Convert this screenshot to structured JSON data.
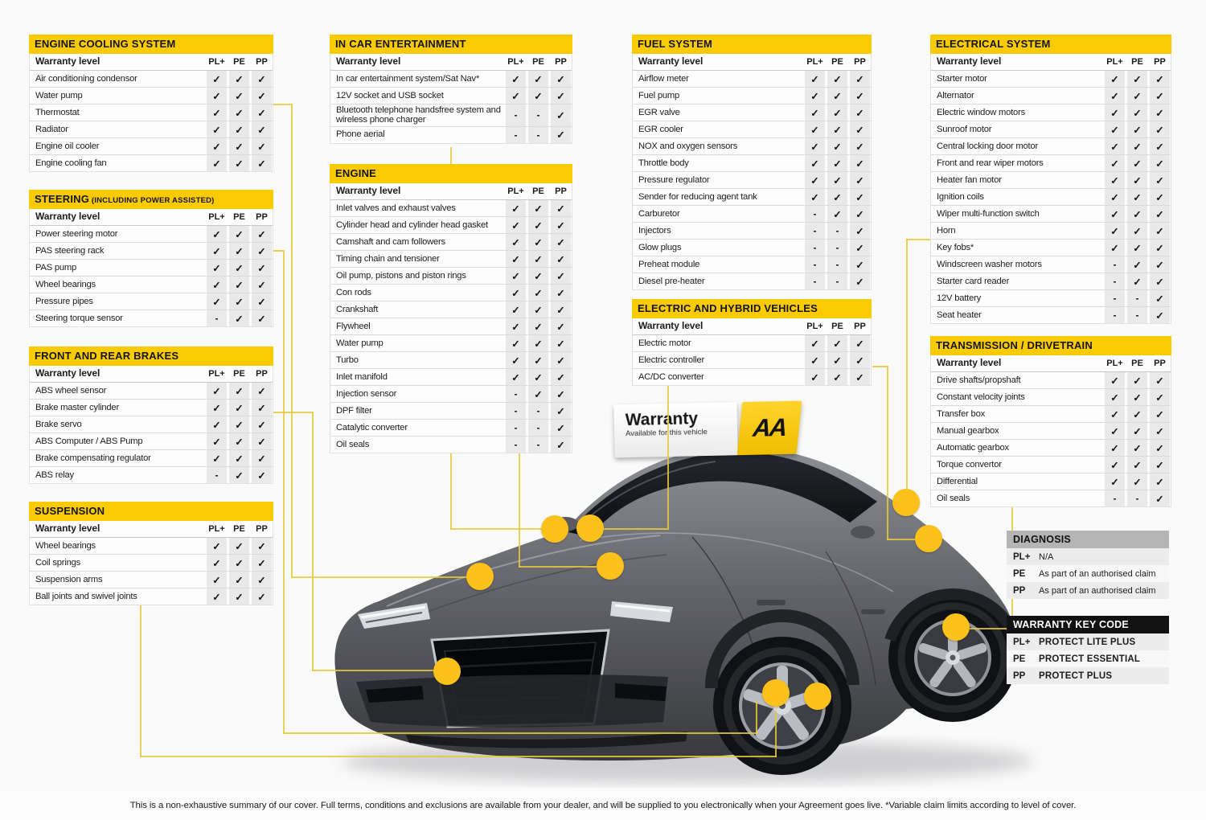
{
  "common": {
    "warranty_level": "Warranty level",
    "columns": [
      "PL+",
      "PE",
      "PP"
    ]
  },
  "colors": {
    "accent_yellow": "#F9CB00",
    "dot_yellow": "#FCC21B",
    "line_yellow": "#E6C93C",
    "diagnosis_header": "#B5B5B5",
    "keycode_header": "#121212"
  },
  "tables": {
    "engine_cooling": {
      "title": "ENGINE COOLING SYSTEM",
      "rows": [
        {
          "label": "Air conditioning condensor",
          "marks": [
            "✓",
            "✓",
            "✓"
          ]
        },
        {
          "label": "Water pump",
          "marks": [
            "✓",
            "✓",
            "✓"
          ]
        },
        {
          "label": "Thermostat",
          "marks": [
            "✓",
            "✓",
            "✓"
          ]
        },
        {
          "label": "Radiator",
          "marks": [
            "✓",
            "✓",
            "✓"
          ]
        },
        {
          "label": "Engine oil cooler",
          "marks": [
            "✓",
            "✓",
            "✓"
          ]
        },
        {
          "label": "Engine cooling fan",
          "marks": [
            "✓",
            "✓",
            "✓"
          ]
        }
      ]
    },
    "steering": {
      "title": "STEERING",
      "subtitle": "(INCLUDING POWER ASSISTED)",
      "rows": [
        {
          "label": "Power steering motor",
          "marks": [
            "✓",
            "✓",
            "✓"
          ]
        },
        {
          "label": "PAS steering rack",
          "marks": [
            "✓",
            "✓",
            "✓"
          ]
        },
        {
          "label": "PAS pump",
          "marks": [
            "✓",
            "✓",
            "✓"
          ]
        },
        {
          "label": "Wheel bearings",
          "marks": [
            "✓",
            "✓",
            "✓"
          ]
        },
        {
          "label": "Pressure pipes",
          "marks": [
            "✓",
            "✓",
            "✓"
          ]
        },
        {
          "label": "Steering torque sensor",
          "marks": [
            "-",
            "✓",
            "✓"
          ]
        }
      ]
    },
    "brakes": {
      "title": "FRONT AND REAR BRAKES",
      "rows": [
        {
          "label": "ABS wheel sensor",
          "marks": [
            "✓",
            "✓",
            "✓"
          ]
        },
        {
          "label": "Brake master cylinder",
          "marks": [
            "✓",
            "✓",
            "✓"
          ]
        },
        {
          "label": "Brake servo",
          "marks": [
            "✓",
            "✓",
            "✓"
          ]
        },
        {
          "label": "ABS Computer / ABS Pump",
          "marks": [
            "✓",
            "✓",
            "✓"
          ]
        },
        {
          "label": "Brake compensating regulator",
          "marks": [
            "✓",
            "✓",
            "✓"
          ]
        },
        {
          "label": "ABS relay",
          "marks": [
            "-",
            "✓",
            "✓"
          ]
        }
      ]
    },
    "suspension": {
      "title": "SUSPENSION",
      "rows": [
        {
          "label": "Wheel bearings",
          "marks": [
            "✓",
            "✓",
            "✓"
          ]
        },
        {
          "label": "Coil springs",
          "marks": [
            "✓",
            "✓",
            "✓"
          ]
        },
        {
          "label": "Suspension arms",
          "marks": [
            "✓",
            "✓",
            "✓"
          ]
        },
        {
          "label": "Ball joints and swivel joints",
          "marks": [
            "✓",
            "✓",
            "✓"
          ]
        }
      ]
    },
    "ice": {
      "title": "IN CAR ENTERTAINMENT",
      "rows": [
        {
          "label": "In car entertainment system/Sat Nav*",
          "marks": [
            "✓",
            "✓",
            "✓"
          ]
        },
        {
          "label": "12V socket and USB socket",
          "marks": [
            "✓",
            "✓",
            "✓"
          ]
        },
        {
          "label": "Bluetooth telephone handsfree system and wireless phone charger",
          "marks": [
            "-",
            "-",
            "✓"
          ]
        },
        {
          "label": "Phone aerial",
          "marks": [
            "-",
            "-",
            "✓"
          ]
        }
      ]
    },
    "engine": {
      "title": "ENGINE",
      "rows": [
        {
          "label": "Inlet valves and exhaust valves",
          "marks": [
            "✓",
            "✓",
            "✓"
          ]
        },
        {
          "label": "Cylinder head and cylinder head gasket",
          "marks": [
            "✓",
            "✓",
            "✓"
          ]
        },
        {
          "label": "Camshaft and cam followers",
          "marks": [
            "✓",
            "✓",
            "✓"
          ]
        },
        {
          "label": "Timing chain and tensioner",
          "marks": [
            "✓",
            "✓",
            "✓"
          ]
        },
        {
          "label": "Oil pump, pistons and piston rings",
          "marks": [
            "✓",
            "✓",
            "✓"
          ]
        },
        {
          "label": "Con rods",
          "marks": [
            "✓",
            "✓",
            "✓"
          ]
        },
        {
          "label": "Crankshaft",
          "marks": [
            "✓",
            "✓",
            "✓"
          ]
        },
        {
          "label": "Flywheel",
          "marks": [
            "✓",
            "✓",
            "✓"
          ]
        },
        {
          "label": "Water pump",
          "marks": [
            "✓",
            "✓",
            "✓"
          ]
        },
        {
          "label": "Turbo",
          "marks": [
            "✓",
            "✓",
            "✓"
          ]
        },
        {
          "label": "Inlet manifold",
          "marks": [
            "✓",
            "✓",
            "✓"
          ]
        },
        {
          "label": "Injection sensor",
          "marks": [
            "-",
            "✓",
            "✓"
          ]
        },
        {
          "label": "DPF filter",
          "marks": [
            "-",
            "-",
            "✓"
          ]
        },
        {
          "label": "Catalytic converter",
          "marks": [
            "-",
            "-",
            "✓"
          ]
        },
        {
          "label": "Oil seals",
          "marks": [
            "-",
            "-",
            "✓"
          ]
        }
      ]
    },
    "fuel": {
      "title": "FUEL SYSTEM",
      "rows": [
        {
          "label": "Airflow meter",
          "marks": [
            "✓",
            "✓",
            "✓"
          ]
        },
        {
          "label": "Fuel pump",
          "marks": [
            "✓",
            "✓",
            "✓"
          ]
        },
        {
          "label": "EGR valve",
          "marks": [
            "✓",
            "✓",
            "✓"
          ]
        },
        {
          "label": "EGR cooler",
          "marks": [
            "✓",
            "✓",
            "✓"
          ]
        },
        {
          "label": "NOX and oxygen sensors",
          "marks": [
            "✓",
            "✓",
            "✓"
          ]
        },
        {
          "label": "Throttle body",
          "marks": [
            "✓",
            "✓",
            "✓"
          ]
        },
        {
          "label": "Pressure regulator",
          "marks": [
            "✓",
            "✓",
            "✓"
          ]
        },
        {
          "label": "Sender for reducing agent tank",
          "marks": [
            "✓",
            "✓",
            "✓"
          ]
        },
        {
          "label": "Carburetor",
          "marks": [
            "-",
            "✓",
            "✓"
          ]
        },
        {
          "label": "Injectors",
          "marks": [
            "-",
            "-",
            "✓"
          ]
        },
        {
          "label": "Glow plugs",
          "marks": [
            "-",
            "-",
            "✓"
          ]
        },
        {
          "label": "Preheat module",
          "marks": [
            "-",
            "-",
            "✓"
          ]
        },
        {
          "label": "Diesel pre-heater",
          "marks": [
            "-",
            "-",
            "✓"
          ]
        }
      ]
    },
    "ehv": {
      "title": "ELECTRIC AND HYBRID VEHICLES",
      "rows": [
        {
          "label": "Electric motor",
          "marks": [
            "✓",
            "✓",
            "✓"
          ]
        },
        {
          "label": "Electric controller",
          "marks": [
            "✓",
            "✓",
            "✓"
          ]
        },
        {
          "label": "AC/DC converter",
          "marks": [
            "✓",
            "✓",
            "✓"
          ]
        }
      ]
    },
    "electrical": {
      "title": "ELECTRICAL SYSTEM",
      "rows": [
        {
          "label": "Starter motor",
          "marks": [
            "✓",
            "✓",
            "✓"
          ]
        },
        {
          "label": "Alternator",
          "marks": [
            "✓",
            "✓",
            "✓"
          ]
        },
        {
          "label": "Electric window motors",
          "marks": [
            "✓",
            "✓",
            "✓"
          ]
        },
        {
          "label": "Sunroof motor",
          "marks": [
            "✓",
            "✓",
            "✓"
          ]
        },
        {
          "label": "Central locking door motor",
          "marks": [
            "✓",
            "✓",
            "✓"
          ]
        },
        {
          "label": "Front and rear wiper motors",
          "marks": [
            "✓",
            "✓",
            "✓"
          ]
        },
        {
          "label": "Heater fan motor",
          "marks": [
            "✓",
            "✓",
            "✓"
          ]
        },
        {
          "label": "Ignition coils",
          "marks": [
            "✓",
            "✓",
            "✓"
          ]
        },
        {
          "label": "Wiper multi-function switch",
          "marks": [
            "✓",
            "✓",
            "✓"
          ]
        },
        {
          "label": "Horn",
          "marks": [
            "✓",
            "✓",
            "✓"
          ]
        },
        {
          "label": "Key fobs*",
          "marks": [
            "✓",
            "✓",
            "✓"
          ]
        },
        {
          "label": "Windscreen washer motors",
          "marks": [
            "-",
            "✓",
            "✓"
          ]
        },
        {
          "label": "Starter card reader",
          "marks": [
            "-",
            "✓",
            "✓"
          ]
        },
        {
          "label": "12V battery",
          "marks": [
            "-",
            "-",
            "✓"
          ]
        },
        {
          "label": "Seat heater",
          "marks": [
            "-",
            "-",
            "✓"
          ]
        }
      ]
    },
    "transmission": {
      "title": "TRANSMISSION / DRIVETRAIN",
      "rows": [
        {
          "label": "Drive shafts/propshaft",
          "marks": [
            "✓",
            "✓",
            "✓"
          ]
        },
        {
          "label": "Constant velocity joints",
          "marks": [
            "✓",
            "✓",
            "✓"
          ]
        },
        {
          "label": "Transfer box",
          "marks": [
            "✓",
            "✓",
            "✓"
          ]
        },
        {
          "label": "Manual gearbox",
          "marks": [
            "✓",
            "✓",
            "✓"
          ]
        },
        {
          "label": "Automatic gearbox",
          "marks": [
            "✓",
            "✓",
            "✓"
          ]
        },
        {
          "label": "Torque convertor",
          "marks": [
            "✓",
            "✓",
            "✓"
          ]
        },
        {
          "label": "Differential",
          "marks": [
            "✓",
            "✓",
            "✓"
          ]
        },
        {
          "label": "Oil seals",
          "marks": [
            "-",
            "-",
            "✓"
          ]
        }
      ]
    }
  },
  "diagnosis": {
    "title": "DIAGNOSIS",
    "rows": [
      [
        "PL+",
        "N/A"
      ],
      [
        "PE",
        "As part of an authorised claim"
      ],
      [
        "PP",
        "As part of an authorised claim"
      ]
    ]
  },
  "keycode": {
    "title": "WARRANTY KEY CODE",
    "rows": [
      [
        "PL+",
        "PROTECT LITE PLUS"
      ],
      [
        "PE",
        "PROTECT ESSENTIAL"
      ],
      [
        "PP",
        "PROTECT PLUS"
      ]
    ]
  },
  "roof_sign": {
    "title": "Warranty",
    "subtitle": "Available for this vehicle",
    "logo": "AA"
  },
  "footer": "This is a non-exhaustive summary of our cover. Full terms, conditions and exclusions are available from your dealer, and will be supplied to you electronically when your Agreement goes live. *Variable claim  limits according to level of cover."
}
